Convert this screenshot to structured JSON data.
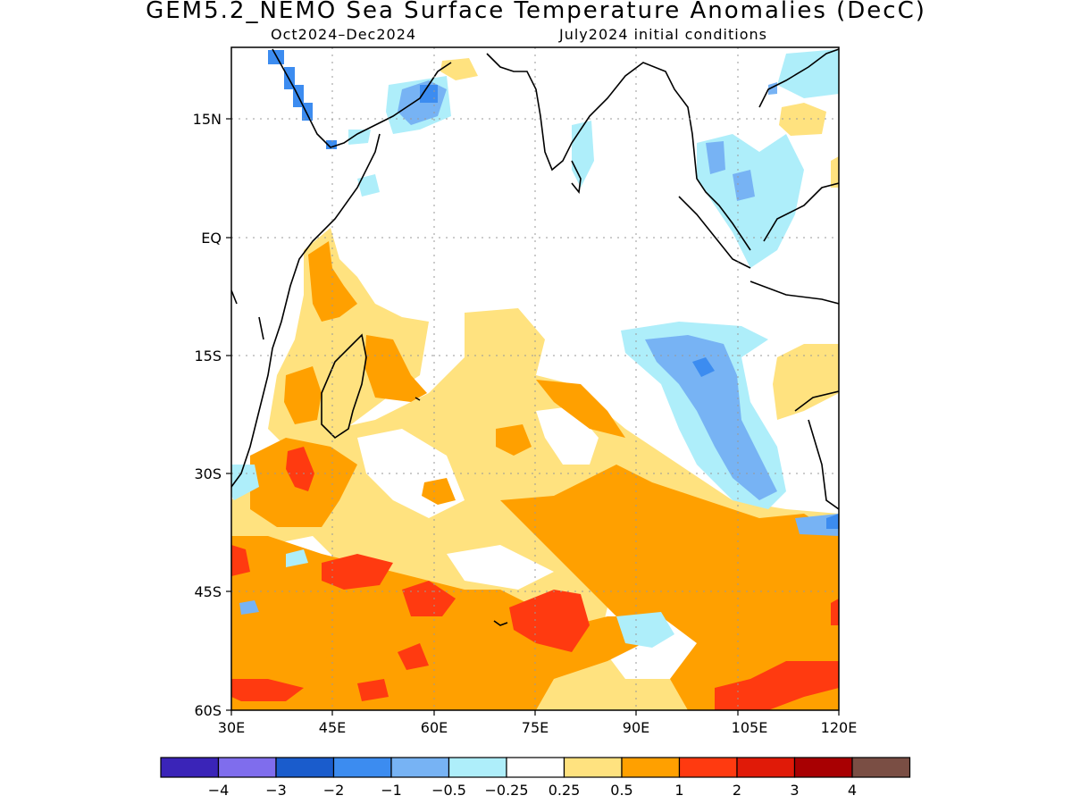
{
  "header": {
    "title": "GEM5.2_NEMO Sea Surface Temperature Anomalies (DecC)",
    "period": "Oct2024–Dec2024",
    "init": "July2024 initial conditions"
  },
  "axes": {
    "lon_ticks": [
      "30E",
      "45E",
      "60E",
      "75E",
      "90E",
      "105E",
      "120E"
    ],
    "lat_ticks": [
      "15N",
      "EQ",
      "15S",
      "30S",
      "45S",
      "60S"
    ],
    "lon_range": [
      30,
      120
    ],
    "lat_range": [
      -60,
      22
    ]
  },
  "colorbar": {
    "colors": [
      "#3a24b8",
      "#7f6ded",
      "#1a5ccc",
      "#3c8cf0",
      "#77b3f4",
      "#aeeefa",
      "#ffffff",
      "#ffe27f",
      "#ffa000",
      "#ff3a10",
      "#e01a08",
      "#a80002",
      "#7a4e44"
    ],
    "labels": [
      "−4",
      "−3",
      "−2",
      "−1",
      "−0.5",
      "−0.25",
      "0.25",
      "0.5",
      "1",
      "2",
      "3",
      "4"
    ]
  }
}
